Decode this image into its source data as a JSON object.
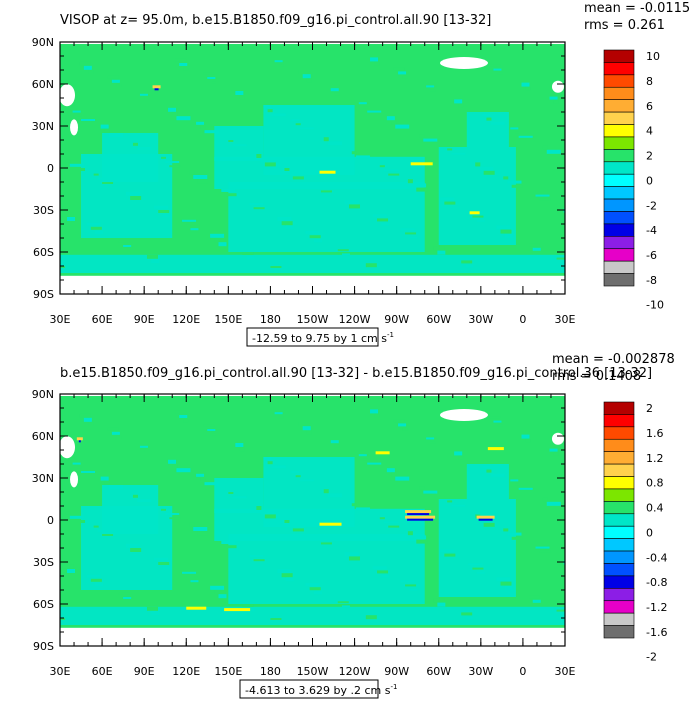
{
  "panels": [
    {
      "title": "VISOP at z=  95.0m, b.e15.B1850.f09_g16.pi_control.all.90 [13-32]",
      "mean_text": "mean = -0.0115",
      "rms_text": "rms = 0.261",
      "range_text": "-12.59 to 9.75 by 1 cm s",
      "range_superscript": "-1",
      "colorbar_labels": [
        "10",
        "8",
        "6",
        "4",
        "2",
        "0",
        "-2",
        "-4",
        "-6",
        "-8",
        "-10"
      ],
      "lat_labels": [
        "90N",
        "60N",
        "30N",
        "0",
        "30S",
        "60S",
        "90S"
      ],
      "lon_labels": [
        "30E",
        "60E",
        "90E",
        "120E",
        "150E",
        "180",
        "150W",
        "120W",
        "90W",
        "60W",
        "30W",
        "0",
        "30E"
      ],
      "hotspots": "weak"
    },
    {
      "title": "b.e15.B1850.f09_g16.pi_control.all.90 [13-32] - b.e15.B1850.f09_g16.pi_control.36 [13-32]",
      "mean_text": "mean = -0.002878",
      "rms_text": "rms = 0.1408",
      "range_text": "-4.613 to 3.629 by .2 cm s",
      "range_superscript": "-1",
      "colorbar_labels": [
        "2",
        "1.6",
        "1.2",
        "0.8",
        "0.4",
        "0",
        "-0.4",
        "-0.8",
        "-1.2",
        "-1.6",
        "-2"
      ],
      "lat_labels": [
        "90N",
        "60N",
        "30N",
        "0",
        "30S",
        "60S",
        "90S"
      ],
      "lon_labels": [
        "30E",
        "60E",
        "90E",
        "120E",
        "150E",
        "180",
        "150W",
        "120W",
        "90W",
        "60W",
        "30W",
        "0",
        "30E"
      ],
      "hotspots": "strong"
    }
  ],
  "colors": {
    "colorbar": [
      "#b40000",
      "#ff0000",
      "#ff4a00",
      "#ff8c1a",
      "#ffad33",
      "#ffd24d",
      "#ffff00",
      "#7ce600",
      "#27e36a",
      "#00e6c8",
      "#00ffff",
      "#00c8ff",
      "#0096ff",
      "#0050ff",
      "#0000e6",
      "#8c1ee6",
      "#e600c8",
      "#c8c8c8",
      "#6e6e6e"
    ],
    "ocean_main": "#27e36a",
    "ocean_negative": "#00e6c8",
    "land": "#ffffff"
  }
}
